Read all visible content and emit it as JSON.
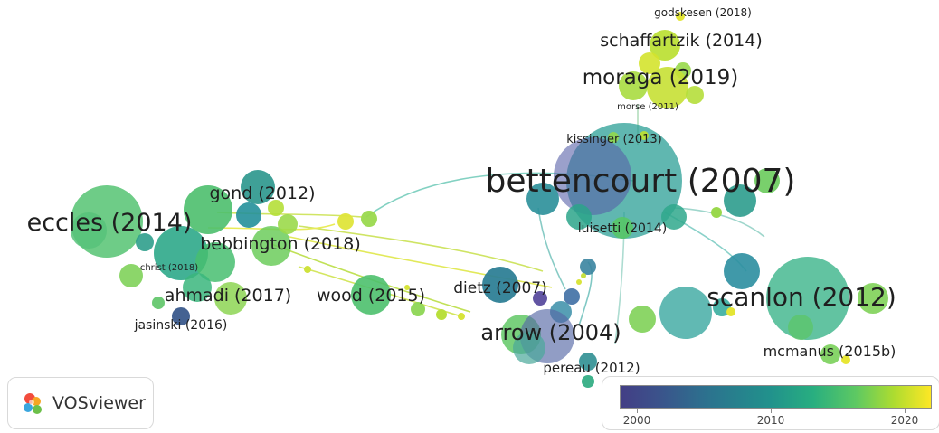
{
  "app": {
    "logo_text": "VOSviewer"
  },
  "legend": {
    "ticks": [
      "2000",
      "2010",
      "2020"
    ]
  },
  "labels": {
    "godskesen": "godskesen (2018)",
    "schaffartzik": "schaffartzik (2014)",
    "moraga": "moraga (2019)",
    "morse": "morse (2011)",
    "kissinger": "kissinger (2013)",
    "bettencourt": "bettencourt (2007)",
    "luisetti": "luisetti (2014)",
    "gond": "gond (2012)",
    "eccles": "eccles (2014)",
    "bebbington": "bebbington (2018)",
    "christ": "christ (2018)",
    "ahmadi": "ahmadi (2017)",
    "wood": "wood (2015)",
    "dietz": "dietz (2007)",
    "jasinski": "jasinski (2016)",
    "arrow": "arrow (2004)",
    "scanlon": "scanlon (2012)",
    "mcmanus": "mcmanus (2015b)",
    "pereau": "pereau (2012)"
  }
}
